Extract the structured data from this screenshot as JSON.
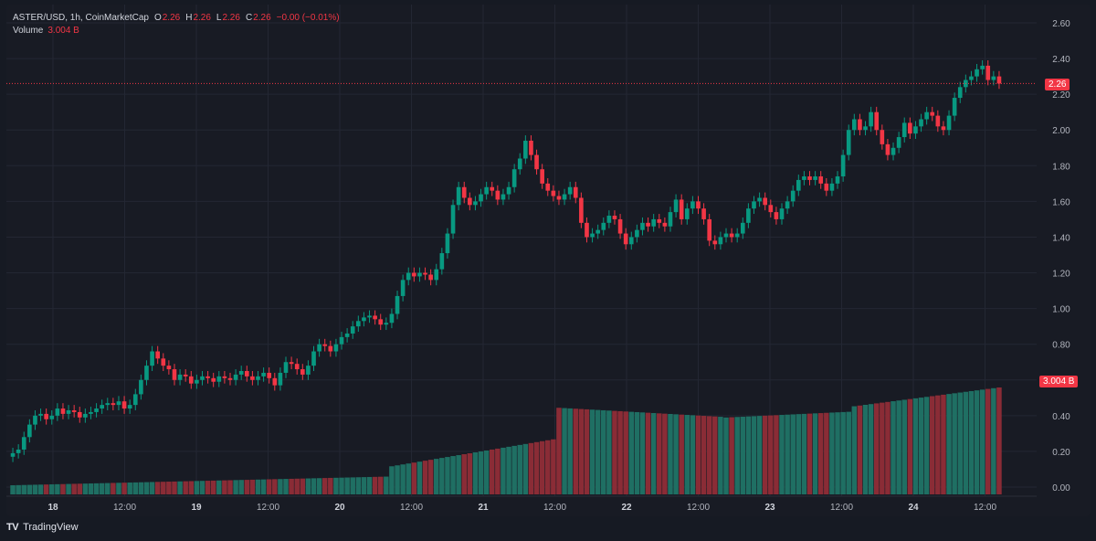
{
  "legend": {
    "symbol": "ASTER/USD, 1h, CoinMarketCap",
    "open_label": "O",
    "open_value": "2.26",
    "high_label": "H",
    "high_value": "2.26",
    "low_label": "L",
    "low_value": "2.26",
    "close_label": "C",
    "close_value": "2.26",
    "change": "−0.00 (−0.01%)",
    "volume_label": "Volume",
    "volume_value": "3.004 B"
  },
  "price_badge": "2.26",
  "volume_badge": "3.004 B",
  "branding": {
    "logo": "TV",
    "name": "TradingView"
  },
  "colors": {
    "up": "#089981",
    "down": "#f23645",
    "volume_up": "#1f6f63",
    "volume_down": "#8a2c36",
    "background": "#181b24",
    "grid": "#232733",
    "axis_text": "#b2b5be"
  },
  "chart_data": {
    "type": "candlestick",
    "x_tick_labels": [
      "18",
      "12:00",
      "19",
      "12:00",
      "20",
      "12:00",
      "21",
      "12:00",
      "22",
      "12:00",
      "23",
      "12:00",
      "24",
      "12:00"
    ],
    "y_tick_labels": [
      "2.60",
      "2.40",
      "2.20",
      "2.00",
      "1.80",
      "1.60",
      "1.40",
      "1.20",
      "1.00",
      "0.80",
      "0.60",
      "0.40",
      "0.20",
      "0.00"
    ],
    "ylim": [
      0,
      2.6
    ],
    "last_price": 2.26,
    "grid": true,
    "series": [
      {
        "kind": "price",
        "closes": [
          0.19,
          0.21,
          0.28,
          0.35,
          0.4,
          0.41,
          0.38,
          0.4,
          0.44,
          0.41,
          0.43,
          0.42,
          0.39,
          0.41,
          0.42,
          0.44,
          0.46,
          0.47,
          0.46,
          0.48,
          0.44,
          0.46,
          0.52,
          0.6,
          0.68,
          0.76,
          0.72,
          0.68,
          0.66,
          0.6,
          0.63,
          0.62,
          0.58,
          0.6,
          0.62,
          0.61,
          0.59,
          0.62,
          0.61,
          0.6,
          0.63,
          0.65,
          0.62,
          0.6,
          0.62,
          0.64,
          0.61,
          0.57,
          0.64,
          0.7,
          0.69,
          0.66,
          0.63,
          0.68,
          0.76,
          0.8,
          0.79,
          0.76,
          0.8,
          0.84,
          0.86,
          0.9,
          0.93,
          0.95,
          0.96,
          0.94,
          0.91,
          0.92,
          0.97,
          1.07,
          1.16,
          1.2,
          1.18,
          1.2,
          1.19,
          1.16,
          1.22,
          1.31,
          1.42,
          1.58,
          1.68,
          1.62,
          1.58,
          1.6,
          1.64,
          1.68,
          1.66,
          1.61,
          1.64,
          1.68,
          1.78,
          1.84,
          1.94,
          1.86,
          1.78,
          1.7,
          1.66,
          1.63,
          1.61,
          1.64,
          1.68,
          1.62,
          1.48,
          1.4,
          1.42,
          1.44,
          1.48,
          1.52,
          1.5,
          1.42,
          1.36,
          1.4,
          1.44,
          1.48,
          1.46,
          1.5,
          1.48,
          1.46,
          1.54,
          1.61,
          1.5,
          1.56,
          1.6,
          1.56,
          1.5,
          1.38,
          1.36,
          1.4,
          1.42,
          1.4,
          1.42,
          1.48,
          1.56,
          1.6,
          1.62,
          1.58,
          1.54,
          1.5,
          1.56,
          1.6,
          1.66,
          1.72,
          1.74,
          1.72,
          1.74,
          1.7,
          1.66,
          1.7,
          1.74,
          1.86,
          2.0,
          2.06,
          2.0,
          2.02,
          2.1,
          2.0,
          1.92,
          1.86,
          1.9,
          1.96,
          2.04,
          1.98,
          2.02,
          2.06,
          2.1,
          2.08,
          2.02,
          2.0,
          2.08,
          2.18,
          2.24,
          2.28,
          2.3,
          2.34,
          2.36,
          2.28,
          2.3,
          2.26
        ],
        "note": "hourly closes read from the price axis"
      },
      {
        "kind": "volume",
        "badge_value": "3.004 B"
      }
    ]
  }
}
